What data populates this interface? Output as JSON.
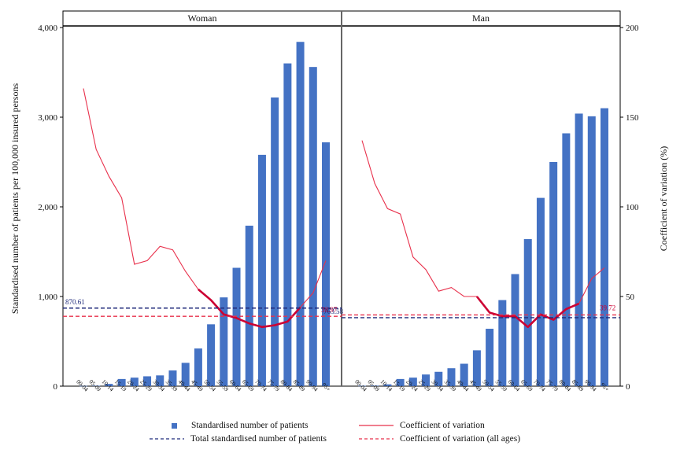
{
  "colors": {
    "bar": "#4472c4",
    "cv_line": "#e8304b",
    "cv_highlight": "#cc0033",
    "total_line": "#1f2a7a",
    "cv_all_line": "#e8304b",
    "frame": "#000000",
    "divider": "#666666"
  },
  "chart_data": {
    "type": "bar",
    "panels": [
      {
        "name": "Woman",
        "categories": [
          "00-04",
          "05-09",
          "10-14",
          "15-19",
          "20-24",
          "25-29",
          "30-34",
          "35-39",
          "40-44",
          "45-49",
          "50-54",
          "55-59",
          "60-64",
          "65-69",
          "70-74",
          "75-79",
          "80-84",
          "85-89",
          "90-94",
          "95+"
        ],
        "standardised_patients": [
          3,
          5,
          25,
          80,
          95,
          110,
          120,
          175,
          260,
          420,
          690,
          990,
          1320,
          1790,
          2580,
          3220,
          3600,
          3840,
          3560,
          2720
        ],
        "coefficient_of_variation": [
          166,
          132,
          117,
          105,
          68,
          70,
          78,
          76,
          64,
          54,
          48,
          40,
          38,
          35,
          33,
          34,
          36,
          44,
          52,
          70
        ],
        "cv_highlight_range": [
          9,
          17
        ],
        "total_standardised_patients": 870.61,
        "total_label": "870.61",
        "cv_all_ages": 38.97,
        "cv_all_label": "38.97"
      },
      {
        "name": "Man",
        "categories": [
          "00-04",
          "05-09",
          "10-14",
          "15-19",
          "20-24",
          "25-29",
          "30-34",
          "35-39",
          "40-44",
          "45-49",
          "50-54",
          "55-59",
          "60-64",
          "65-69",
          "70-74",
          "75-79",
          "80-84",
          "85-89",
          "90-94",
          "95+"
        ],
        "standardised_patients": [
          4,
          6,
          20,
          80,
          95,
          130,
          160,
          200,
          250,
          400,
          640,
          960,
          1250,
          1640,
          2100,
          2500,
          2820,
          3040,
          3010,
          3100
        ],
        "coefficient_of_variation": [
          137,
          113,
          99,
          96,
          72,
          65,
          53,
          55,
          50,
          50,
          41,
          39,
          39,
          33,
          40,
          37,
          43,
          46,
          60,
          66
        ],
        "cv_highlight_range": [
          9,
          17
        ],
        "total_standardised_patients": 763.58,
        "total_label": "763.58",
        "cv_all_ages": 39.72,
        "cv_all_label": "39.72"
      }
    ],
    "y_left": {
      "label": "Standardised number of patients per 100,000 insured persons",
      "range": [
        0,
        4000
      ],
      "ticks": [
        0,
        1000,
        2000,
        3000,
        4000
      ],
      "tick_labels": [
        "0",
        "1,000",
        "2,000",
        "3,000",
        "4,000"
      ]
    },
    "y_right": {
      "label": "Coefficient of variation (%)",
      "range": [
        0,
        200
      ],
      "ticks": [
        0,
        50,
        100,
        150,
        200
      ],
      "tick_labels": [
        "0",
        "50",
        "100",
        "150",
        "200"
      ]
    },
    "grid": false,
    "legend_position": "bottom"
  },
  "legend": {
    "bars": "Standardised number of patients",
    "cv": "Coefficient of variation",
    "total": "Total standardised number of patients",
    "cv_all": "Coefficient of variation (all ages)"
  }
}
